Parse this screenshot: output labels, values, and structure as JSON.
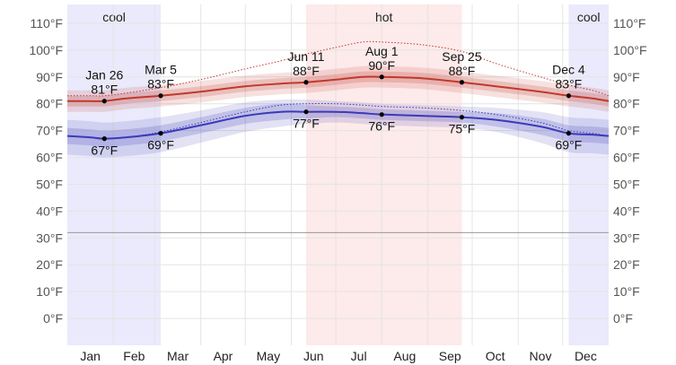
{
  "chart_data": {
    "type": "area",
    "x_unit": "day of year",
    "y_unit": "°F",
    "ylim": [
      -10,
      117
    ],
    "grid": true,
    "y_ticks": [
      {
        "value": 110,
        "label": "110°F"
      },
      {
        "value": 100,
        "label": "100°F"
      },
      {
        "value": 90,
        "label": "90°F"
      },
      {
        "value": 80,
        "label": "80°F"
      },
      {
        "value": 70,
        "label": "70°F"
      },
      {
        "value": 60,
        "label": "60°F"
      },
      {
        "value": 50,
        "label": "50°F"
      },
      {
        "value": 40,
        "label": "40°F"
      },
      {
        "value": 30,
        "label": "30°F"
      },
      {
        "value": 20,
        "label": "20°F"
      },
      {
        "value": 10,
        "label": "10°F"
      },
      {
        "value": 0,
        "label": "0°F"
      }
    ],
    "freezing_line": 32,
    "months": [
      {
        "label": "Jan",
        "start": 1,
        "end": 32
      },
      {
        "label": "Feb",
        "start": 32,
        "end": 60
      },
      {
        "label": "Mar",
        "start": 60,
        "end": 91
      },
      {
        "label": "Apr",
        "start": 91,
        "end": 121
      },
      {
        "label": "May",
        "start": 121,
        "end": 152
      },
      {
        "label": "Jun",
        "start": 152,
        "end": 182
      },
      {
        "label": "Jul",
        "start": 182,
        "end": 213
      },
      {
        "label": "Aug",
        "start": 213,
        "end": 244
      },
      {
        "label": "Sep",
        "start": 244,
        "end": 274
      },
      {
        "label": "Oct",
        "start": 274,
        "end": 305
      },
      {
        "label": "Nov",
        "start": 305,
        "end": 335
      },
      {
        "label": "Dec",
        "start": 335,
        "end": 366
      }
    ],
    "seasons": [
      {
        "label": "cool",
        "start": 1,
        "end": 64,
        "color": "#eaeafc"
      },
      {
        "label": "hot",
        "start": 162,
        "end": 267,
        "color": "#fdeaea"
      },
      {
        "label": "cool",
        "start": 339,
        "end": 366,
        "color": "#eaeafc"
      }
    ],
    "x": [
      1,
      16,
      26,
      41,
      64,
      91,
      121,
      145,
      162,
      182,
      200,
      213,
      240,
      267,
      290,
      320,
      339,
      355,
      366
    ],
    "series": [
      {
        "key": "high",
        "color": "#c0392b",
        "values": [
          81,
          81,
          81,
          82,
          83,
          84.5,
          86.5,
          87.5,
          88,
          89,
          90,
          90,
          89.5,
          88,
          86.5,
          84.5,
          83,
          82,
          81
        ],
        "band_inner": [
          [
            79,
            83
          ],
          [
            79,
            83
          ],
          [
            79,
            83
          ],
          [
            80,
            84
          ],
          [
            81,
            85
          ],
          [
            82.5,
            86.5
          ],
          [
            84.5,
            88.5
          ],
          [
            85.5,
            89.5
          ],
          [
            86,
            90
          ],
          [
            87,
            91
          ],
          [
            88,
            92
          ],
          [
            88,
            92
          ],
          [
            87.5,
            91.5
          ],
          [
            86,
            90
          ],
          [
            84.5,
            88.5
          ],
          [
            82.5,
            86.5
          ],
          [
            81,
            85
          ],
          [
            80,
            84
          ],
          [
            79,
            83
          ]
        ],
        "band_outer": [
          [
            77,
            85
          ],
          [
            77,
            85
          ],
          [
            77,
            85
          ],
          [
            78,
            86
          ],
          [
            79,
            87
          ],
          [
            80.5,
            88.5
          ],
          [
            82.5,
            90.5
          ],
          [
            83.5,
            91.5
          ],
          [
            84,
            92
          ],
          [
            85,
            93
          ],
          [
            86,
            94
          ],
          [
            86,
            94
          ],
          [
            85.5,
            93.5
          ],
          [
            84,
            92
          ],
          [
            82.5,
            90.5
          ],
          [
            80.5,
            88.5
          ],
          [
            79,
            87
          ],
          [
            78,
            86
          ],
          [
            77,
            85
          ]
        ],
        "feels_like": [
          83,
          83,
          83,
          84,
          86,
          89,
          93,
          96,
          98.5,
          101,
          103,
          103,
          102,
          99.5,
          95,
          90,
          87,
          85,
          83
        ]
      },
      {
        "key": "low",
        "color": "#3a3ab8",
        "values": [
          68,
          67.5,
          67,
          67.5,
          69,
          72,
          75.5,
          77,
          77,
          77,
          76.5,
          76,
          75.5,
          75,
          74,
          71.5,
          69,
          68.5,
          68
        ],
        "band_inner": [
          [
            65,
            71
          ],
          [
            64.5,
            70.5
          ],
          [
            64,
            70
          ],
          [
            64.5,
            70.5
          ],
          [
            66,
            72
          ],
          [
            69,
            75
          ],
          [
            72.5,
            78.5
          ],
          [
            74,
            80
          ],
          [
            74.5,
            79.5
          ],
          [
            75,
            79
          ],
          [
            74.5,
            78.5
          ],
          [
            74,
            78
          ],
          [
            73.5,
            77.5
          ],
          [
            73,
            77
          ],
          [
            71.5,
            76.5
          ],
          [
            68.5,
            74.5
          ],
          [
            66,
            72
          ],
          [
            65.5,
            71.5
          ],
          [
            65,
            71
          ]
        ],
        "band_outer": [
          [
            61,
            74
          ],
          [
            60.5,
            73.5
          ],
          [
            60,
            73
          ],
          [
            60.5,
            73.5
          ],
          [
            62,
            75
          ],
          [
            65.5,
            77.5
          ],
          [
            69.5,
            80.5
          ],
          [
            71.5,
            81.5
          ],
          [
            72.5,
            81.5
          ],
          [
            73,
            81
          ],
          [
            72.5,
            80.5
          ],
          [
            72,
            80
          ],
          [
            71.5,
            79.5
          ],
          [
            71,
            79
          ],
          [
            69.5,
            78.5
          ],
          [
            65.5,
            77
          ],
          [
            62,
            75
          ],
          [
            61.5,
            74.5
          ],
          [
            61,
            74
          ]
        ],
        "feels_like": [
          68,
          67.5,
          67,
          67.5,
          69.5,
          73,
          77,
          79.5,
          80,
          80,
          79.5,
          79,
          78.5,
          77.5,
          76,
          73,
          70,
          69,
          68
        ]
      }
    ],
    "annotations": [
      {
        "x": 26,
        "y": 81,
        "date": "Jan 26",
        "text": "81°F",
        "pos": "above"
      },
      {
        "x": 26,
        "y": 67,
        "date": "",
        "text": "67°F",
        "pos": "below"
      },
      {
        "x": 64,
        "y": 83,
        "date": "Mar 5",
        "text": "83°F",
        "pos": "above"
      },
      {
        "x": 64,
        "y": 69,
        "date": "",
        "text": "69°F",
        "pos": "below"
      },
      {
        "x": 162,
        "y": 88,
        "date": "Jun 11",
        "text": "88°F",
        "pos": "above"
      },
      {
        "x": 162,
        "y": 77,
        "date": "",
        "text": "77°F",
        "pos": "below"
      },
      {
        "x": 213,
        "y": 90,
        "date": "Aug 1",
        "text": "90°F",
        "pos": "above"
      },
      {
        "x": 213,
        "y": 76,
        "date": "",
        "text": "76°F",
        "pos": "below"
      },
      {
        "x": 267,
        "y": 88,
        "date": "Sep 25",
        "text": "88°F",
        "pos": "above"
      },
      {
        "x": 267,
        "y": 75,
        "date": "",
        "text": "75°F",
        "pos": "below"
      },
      {
        "x": 339,
        "y": 83,
        "date": "Dec 4",
        "text": "83°F",
        "pos": "above"
      },
      {
        "x": 339,
        "y": 69,
        "date": "",
        "text": "69°F",
        "pos": "below"
      }
    ]
  }
}
